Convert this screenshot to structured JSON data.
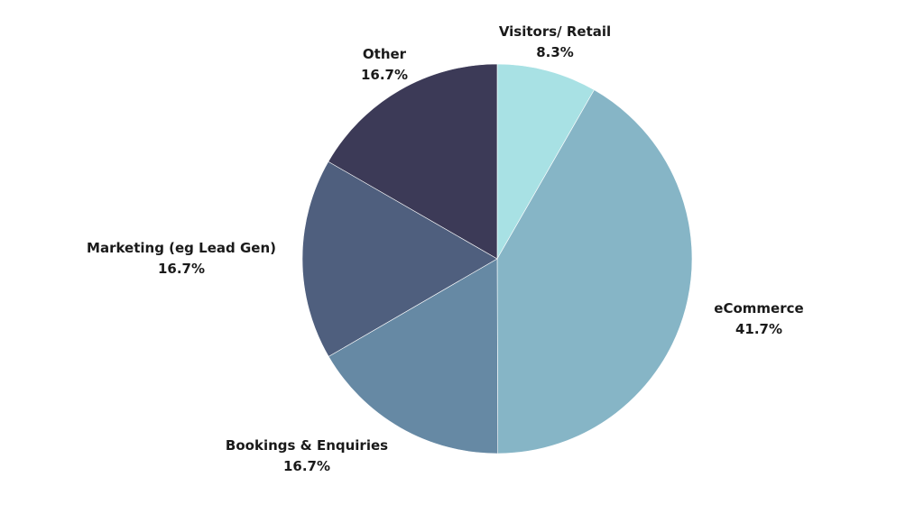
{
  "chart_data": {
    "type": "pie",
    "title": "",
    "start_angle_deg": 0,
    "direction": "clockwise",
    "slices": [
      {
        "label": "Visitors/ Retail",
        "value": 8.3,
        "value_label": "8.3%",
        "color": "#a8e1e4"
      },
      {
        "label": "eCommerce",
        "value": 41.7,
        "value_label": "41.7%",
        "color": "#86b5c6"
      },
      {
        "label": "Bookings & Enquiries",
        "value": 16.7,
        "value_label": "16.7%",
        "color": "#6689a4"
      },
      {
        "label": "Marketing (eg Lead Gen)",
        "value": 16.7,
        "value_label": "16.7%",
        "color": "#4f5f7e"
      },
      {
        "label": "Other",
        "value": 16.7,
        "value_label": "16.7%",
        "color": "#3c3a57"
      }
    ],
    "legend": "none"
  }
}
